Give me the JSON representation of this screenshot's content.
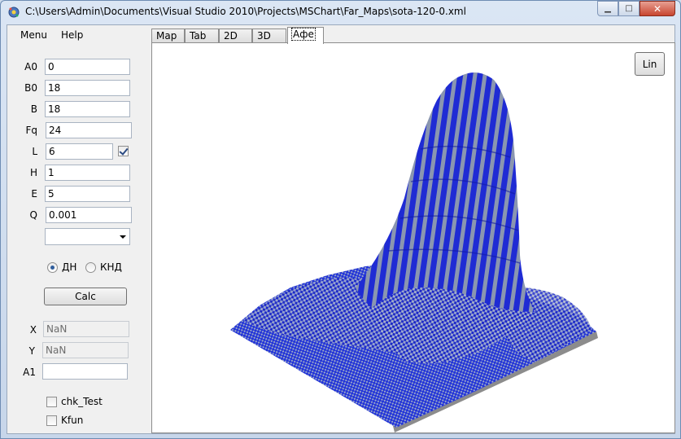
{
  "window": {
    "title": "C:\\Users\\Admin\\Documents\\Visual Studio 2010\\Projects\\MSChart\\Far_Maps\\sota-120-0.xml",
    "minimize_glyph": "▁",
    "maximize_glyph": "□",
    "close_glyph": "✕"
  },
  "menu": {
    "items": [
      "Menu",
      "Help"
    ]
  },
  "params": [
    {
      "label": "A0",
      "value": "0"
    },
    {
      "label": "B0",
      "value": "18"
    },
    {
      "label": "B",
      "value": "18"
    },
    {
      "label": "Fq",
      "value": "24"
    },
    {
      "label": "L",
      "value": "6"
    },
    {
      "label": "H",
      "value": "1"
    },
    {
      "label": "E",
      "value": "5"
    },
    {
      "label": "Q",
      "value": "0.001"
    }
  ],
  "l_checkbox_checked": true,
  "combo": {
    "value": ""
  },
  "radios": [
    {
      "label": "ДН",
      "checked": true
    },
    {
      "label": "КНД",
      "checked": false
    }
  ],
  "calc_button": "Calc",
  "readouts": [
    {
      "label": "X",
      "value": "NaN"
    },
    {
      "label": "Y",
      "value": "NaN"
    },
    {
      "label": "A1",
      "value": ""
    }
  ],
  "checkboxes": [
    {
      "label": "chk_Test",
      "checked": false
    },
    {
      "label": "Kfun",
      "checked": false
    }
  ],
  "tabs": [
    "Map",
    "Tab",
    "2D",
    "3D",
    "Афе"
  ],
  "active_tab": 4,
  "lin_button": "Lin",
  "colors": {
    "surface_primary": "#1f2bd4",
    "surface_secondary": "#8a96b0",
    "base_shadow": "#8c8c8c"
  }
}
